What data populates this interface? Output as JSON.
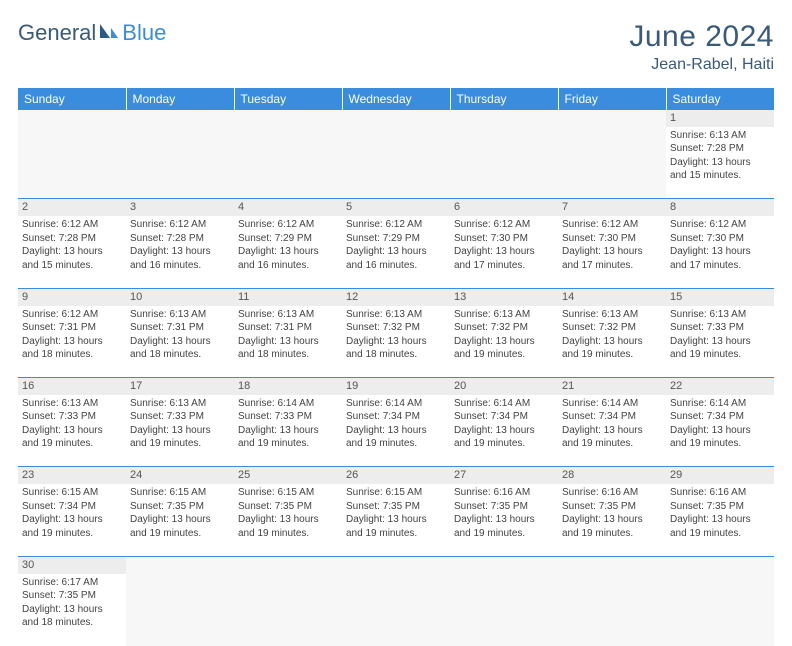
{
  "brand": {
    "text1": "General",
    "text2": "Blue"
  },
  "header": {
    "month": "June 2024",
    "location": "Jean-Rabel, Haiti"
  },
  "colors": {
    "header_bg": "#3a8dde",
    "header_text": "#ffffff",
    "daynum_bg": "#ededed",
    "border": "#3a8dde",
    "title_color": "#3a5a7a"
  },
  "dayNames": [
    "Sunday",
    "Monday",
    "Tuesday",
    "Wednesday",
    "Thursday",
    "Friday",
    "Saturday"
  ],
  "weeks": [
    {
      "nums": [
        "",
        "",
        "",
        "",
        "",
        "",
        "1"
      ],
      "cells": [
        null,
        null,
        null,
        null,
        null,
        null,
        {
          "sr": "Sunrise: 6:13 AM",
          "ss": "Sunset: 7:28 PM",
          "d1": "Daylight: 13 hours",
          "d2": "and 15 minutes."
        }
      ]
    },
    {
      "nums": [
        "2",
        "3",
        "4",
        "5",
        "6",
        "7",
        "8"
      ],
      "cells": [
        {
          "sr": "Sunrise: 6:12 AM",
          "ss": "Sunset: 7:28 PM",
          "d1": "Daylight: 13 hours",
          "d2": "and 15 minutes."
        },
        {
          "sr": "Sunrise: 6:12 AM",
          "ss": "Sunset: 7:28 PM",
          "d1": "Daylight: 13 hours",
          "d2": "and 16 minutes."
        },
        {
          "sr": "Sunrise: 6:12 AM",
          "ss": "Sunset: 7:29 PM",
          "d1": "Daylight: 13 hours",
          "d2": "and 16 minutes."
        },
        {
          "sr": "Sunrise: 6:12 AM",
          "ss": "Sunset: 7:29 PM",
          "d1": "Daylight: 13 hours",
          "d2": "and 16 minutes."
        },
        {
          "sr": "Sunrise: 6:12 AM",
          "ss": "Sunset: 7:30 PM",
          "d1": "Daylight: 13 hours",
          "d2": "and 17 minutes."
        },
        {
          "sr": "Sunrise: 6:12 AM",
          "ss": "Sunset: 7:30 PM",
          "d1": "Daylight: 13 hours",
          "d2": "and 17 minutes."
        },
        {
          "sr": "Sunrise: 6:12 AM",
          "ss": "Sunset: 7:30 PM",
          "d1": "Daylight: 13 hours",
          "d2": "and 17 minutes."
        }
      ]
    },
    {
      "nums": [
        "9",
        "10",
        "11",
        "12",
        "13",
        "14",
        "15"
      ],
      "cells": [
        {
          "sr": "Sunrise: 6:12 AM",
          "ss": "Sunset: 7:31 PM",
          "d1": "Daylight: 13 hours",
          "d2": "and 18 minutes."
        },
        {
          "sr": "Sunrise: 6:13 AM",
          "ss": "Sunset: 7:31 PM",
          "d1": "Daylight: 13 hours",
          "d2": "and 18 minutes."
        },
        {
          "sr": "Sunrise: 6:13 AM",
          "ss": "Sunset: 7:31 PM",
          "d1": "Daylight: 13 hours",
          "d2": "and 18 minutes."
        },
        {
          "sr": "Sunrise: 6:13 AM",
          "ss": "Sunset: 7:32 PM",
          "d1": "Daylight: 13 hours",
          "d2": "and 18 minutes."
        },
        {
          "sr": "Sunrise: 6:13 AM",
          "ss": "Sunset: 7:32 PM",
          "d1": "Daylight: 13 hours",
          "d2": "and 19 minutes."
        },
        {
          "sr": "Sunrise: 6:13 AM",
          "ss": "Sunset: 7:32 PM",
          "d1": "Daylight: 13 hours",
          "d2": "and 19 minutes."
        },
        {
          "sr": "Sunrise: 6:13 AM",
          "ss": "Sunset: 7:33 PM",
          "d1": "Daylight: 13 hours",
          "d2": "and 19 minutes."
        }
      ]
    },
    {
      "nums": [
        "16",
        "17",
        "18",
        "19",
        "20",
        "21",
        "22"
      ],
      "cells": [
        {
          "sr": "Sunrise: 6:13 AM",
          "ss": "Sunset: 7:33 PM",
          "d1": "Daylight: 13 hours",
          "d2": "and 19 minutes."
        },
        {
          "sr": "Sunrise: 6:13 AM",
          "ss": "Sunset: 7:33 PM",
          "d1": "Daylight: 13 hours",
          "d2": "and 19 minutes."
        },
        {
          "sr": "Sunrise: 6:14 AM",
          "ss": "Sunset: 7:33 PM",
          "d1": "Daylight: 13 hours",
          "d2": "and 19 minutes."
        },
        {
          "sr": "Sunrise: 6:14 AM",
          "ss": "Sunset: 7:34 PM",
          "d1": "Daylight: 13 hours",
          "d2": "and 19 minutes."
        },
        {
          "sr": "Sunrise: 6:14 AM",
          "ss": "Sunset: 7:34 PM",
          "d1": "Daylight: 13 hours",
          "d2": "and 19 minutes."
        },
        {
          "sr": "Sunrise: 6:14 AM",
          "ss": "Sunset: 7:34 PM",
          "d1": "Daylight: 13 hours",
          "d2": "and 19 minutes."
        },
        {
          "sr": "Sunrise: 6:14 AM",
          "ss": "Sunset: 7:34 PM",
          "d1": "Daylight: 13 hours",
          "d2": "and 19 minutes."
        }
      ]
    },
    {
      "nums": [
        "23",
        "24",
        "25",
        "26",
        "27",
        "28",
        "29"
      ],
      "cells": [
        {
          "sr": "Sunrise: 6:15 AM",
          "ss": "Sunset: 7:34 PM",
          "d1": "Daylight: 13 hours",
          "d2": "and 19 minutes."
        },
        {
          "sr": "Sunrise: 6:15 AM",
          "ss": "Sunset: 7:35 PM",
          "d1": "Daylight: 13 hours",
          "d2": "and 19 minutes."
        },
        {
          "sr": "Sunrise: 6:15 AM",
          "ss": "Sunset: 7:35 PM",
          "d1": "Daylight: 13 hours",
          "d2": "and 19 minutes."
        },
        {
          "sr": "Sunrise: 6:15 AM",
          "ss": "Sunset: 7:35 PM",
          "d1": "Daylight: 13 hours",
          "d2": "and 19 minutes."
        },
        {
          "sr": "Sunrise: 6:16 AM",
          "ss": "Sunset: 7:35 PM",
          "d1": "Daylight: 13 hours",
          "d2": "and 19 minutes."
        },
        {
          "sr": "Sunrise: 6:16 AM",
          "ss": "Sunset: 7:35 PM",
          "d1": "Daylight: 13 hours",
          "d2": "and 19 minutes."
        },
        {
          "sr": "Sunrise: 6:16 AM",
          "ss": "Sunset: 7:35 PM",
          "d1": "Daylight: 13 hours",
          "d2": "and 19 minutes."
        }
      ]
    },
    {
      "nums": [
        "30",
        "",
        "",
        "",
        "",
        "",
        ""
      ],
      "cells": [
        {
          "sr": "Sunrise: 6:17 AM",
          "ss": "Sunset: 7:35 PM",
          "d1": "Daylight: 13 hours",
          "d2": "and 18 minutes."
        },
        null,
        null,
        null,
        null,
        null,
        null
      ]
    }
  ]
}
